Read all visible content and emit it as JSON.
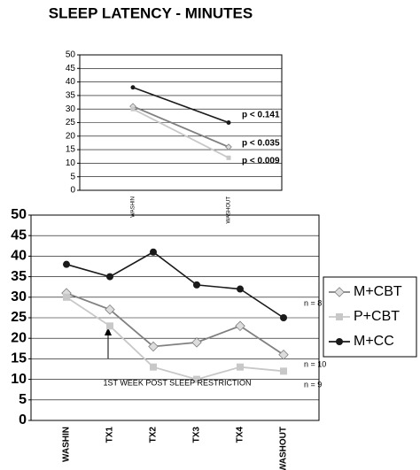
{
  "chart_data": [
    {
      "type": "line",
      "title": "SLEEP LATENCY - MINUTES",
      "categories": [
        "WASHIN",
        "WASHOUT"
      ],
      "series": [
        {
          "name": "M+CBT",
          "color": "#808080",
          "values": [
            31,
            16
          ]
        },
        {
          "name": "P+CBT",
          "color": "#c8c8c8",
          "values": [
            30,
            12
          ]
        },
        {
          "name": "M+CC",
          "color": "#1a1a1a",
          "values": [
            38,
            25
          ]
        }
      ],
      "ylim": [
        0,
        50
      ],
      "yticks": [
        0,
        5,
        10,
        15,
        20,
        25,
        30,
        35,
        40,
        45,
        50
      ],
      "grid": true,
      "annotations": [
        "p < 0.141",
        "p < 0.035",
        "p < 0.009"
      ]
    },
    {
      "type": "line",
      "categories": [
        "WASHIN",
        "TX1",
        "TX2",
        "TX3",
        "TX4",
        "WASHOUT"
      ],
      "series": [
        {
          "name": "M+CBT",
          "color": "#808080",
          "values": [
            31,
            27,
            18,
            19,
            23,
            16
          ]
        },
        {
          "name": "P+CBT",
          "color": "#c8c8c8",
          "values": [
            30,
            23,
            13,
            10,
            13,
            12
          ]
        },
        {
          "name": "M+CC",
          "color": "#1a1a1a",
          "values": [
            38,
            35,
            41,
            33,
            32,
            25
          ]
        }
      ],
      "ylim": [
        0,
        50
      ],
      "yticks": [
        0,
        5,
        10,
        15,
        20,
        25,
        30,
        35,
        40,
        45,
        50
      ],
      "grid": true,
      "legend": "right",
      "annotations": [
        "n = 8",
        "n = 10",
        "n = 9",
        "1ST WEEK POST SLEEP RESTRICTION"
      ]
    }
  ]
}
